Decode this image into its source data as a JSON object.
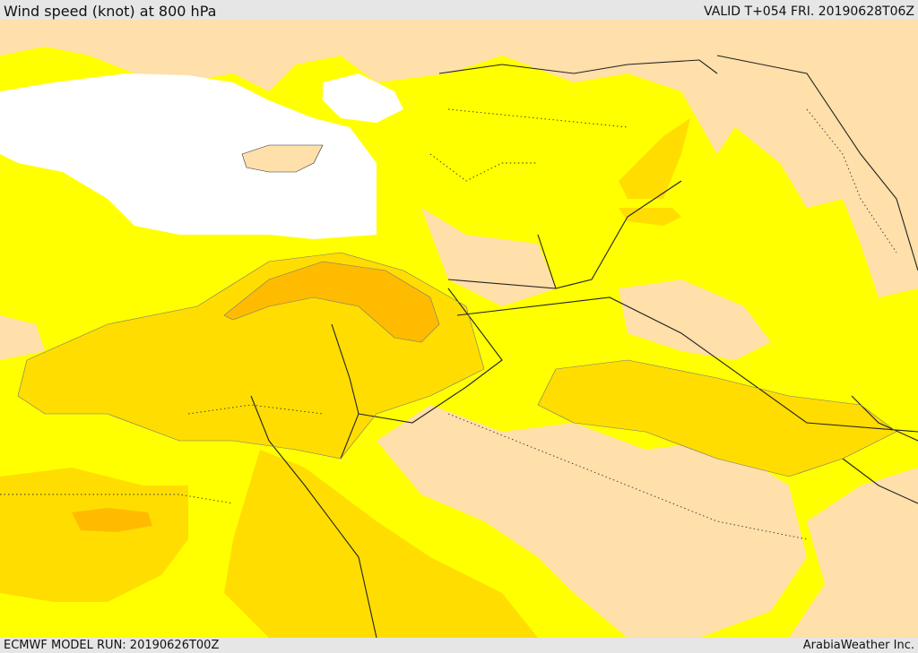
{
  "header": {
    "title": "Wind speed (knot) at 800 hPa",
    "valid": "VALID T+054 FRI. 20190628T06Z"
  },
  "footer": {
    "model_run": "ECMWF MODEL RUN: 20190626T00Z",
    "brand": "ArabiaWeather Inc."
  },
  "map": {
    "colors": {
      "sea": "#ffffff",
      "band_lowest": "#ffdfaa",
      "band_low": "#ffff00",
      "band_mid": "#ffdd00",
      "band_high": "#ffbb00"
    }
  }
}
